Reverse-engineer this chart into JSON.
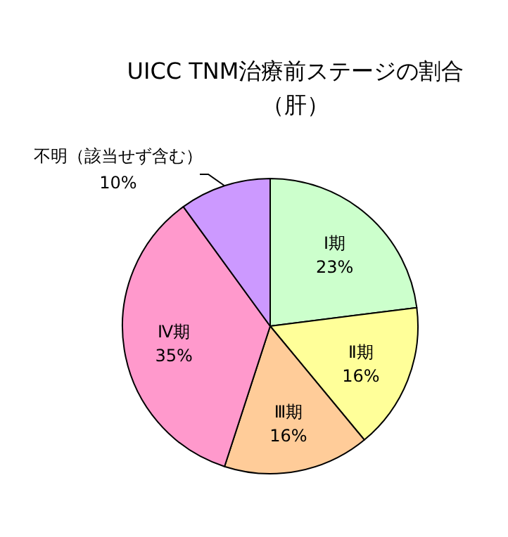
{
  "chart_data": {
    "type": "pie",
    "title": "UICC TNM治療前ステージの割合",
    "subtitle": "（肝）",
    "categories": [
      "Ⅰ期",
      "Ⅱ期",
      "Ⅲ期",
      "Ⅳ期",
      "不明（該当せず含む）"
    ],
    "values": [
      23,
      16,
      16,
      35,
      10
    ],
    "value_labels": [
      "23%",
      "16%",
      "16%",
      "35%",
      "10%"
    ],
    "colors": [
      "#ccffcc",
      "#ffff99",
      "#ffcc99",
      "#ff99cc",
      "#cc99ff"
    ]
  }
}
